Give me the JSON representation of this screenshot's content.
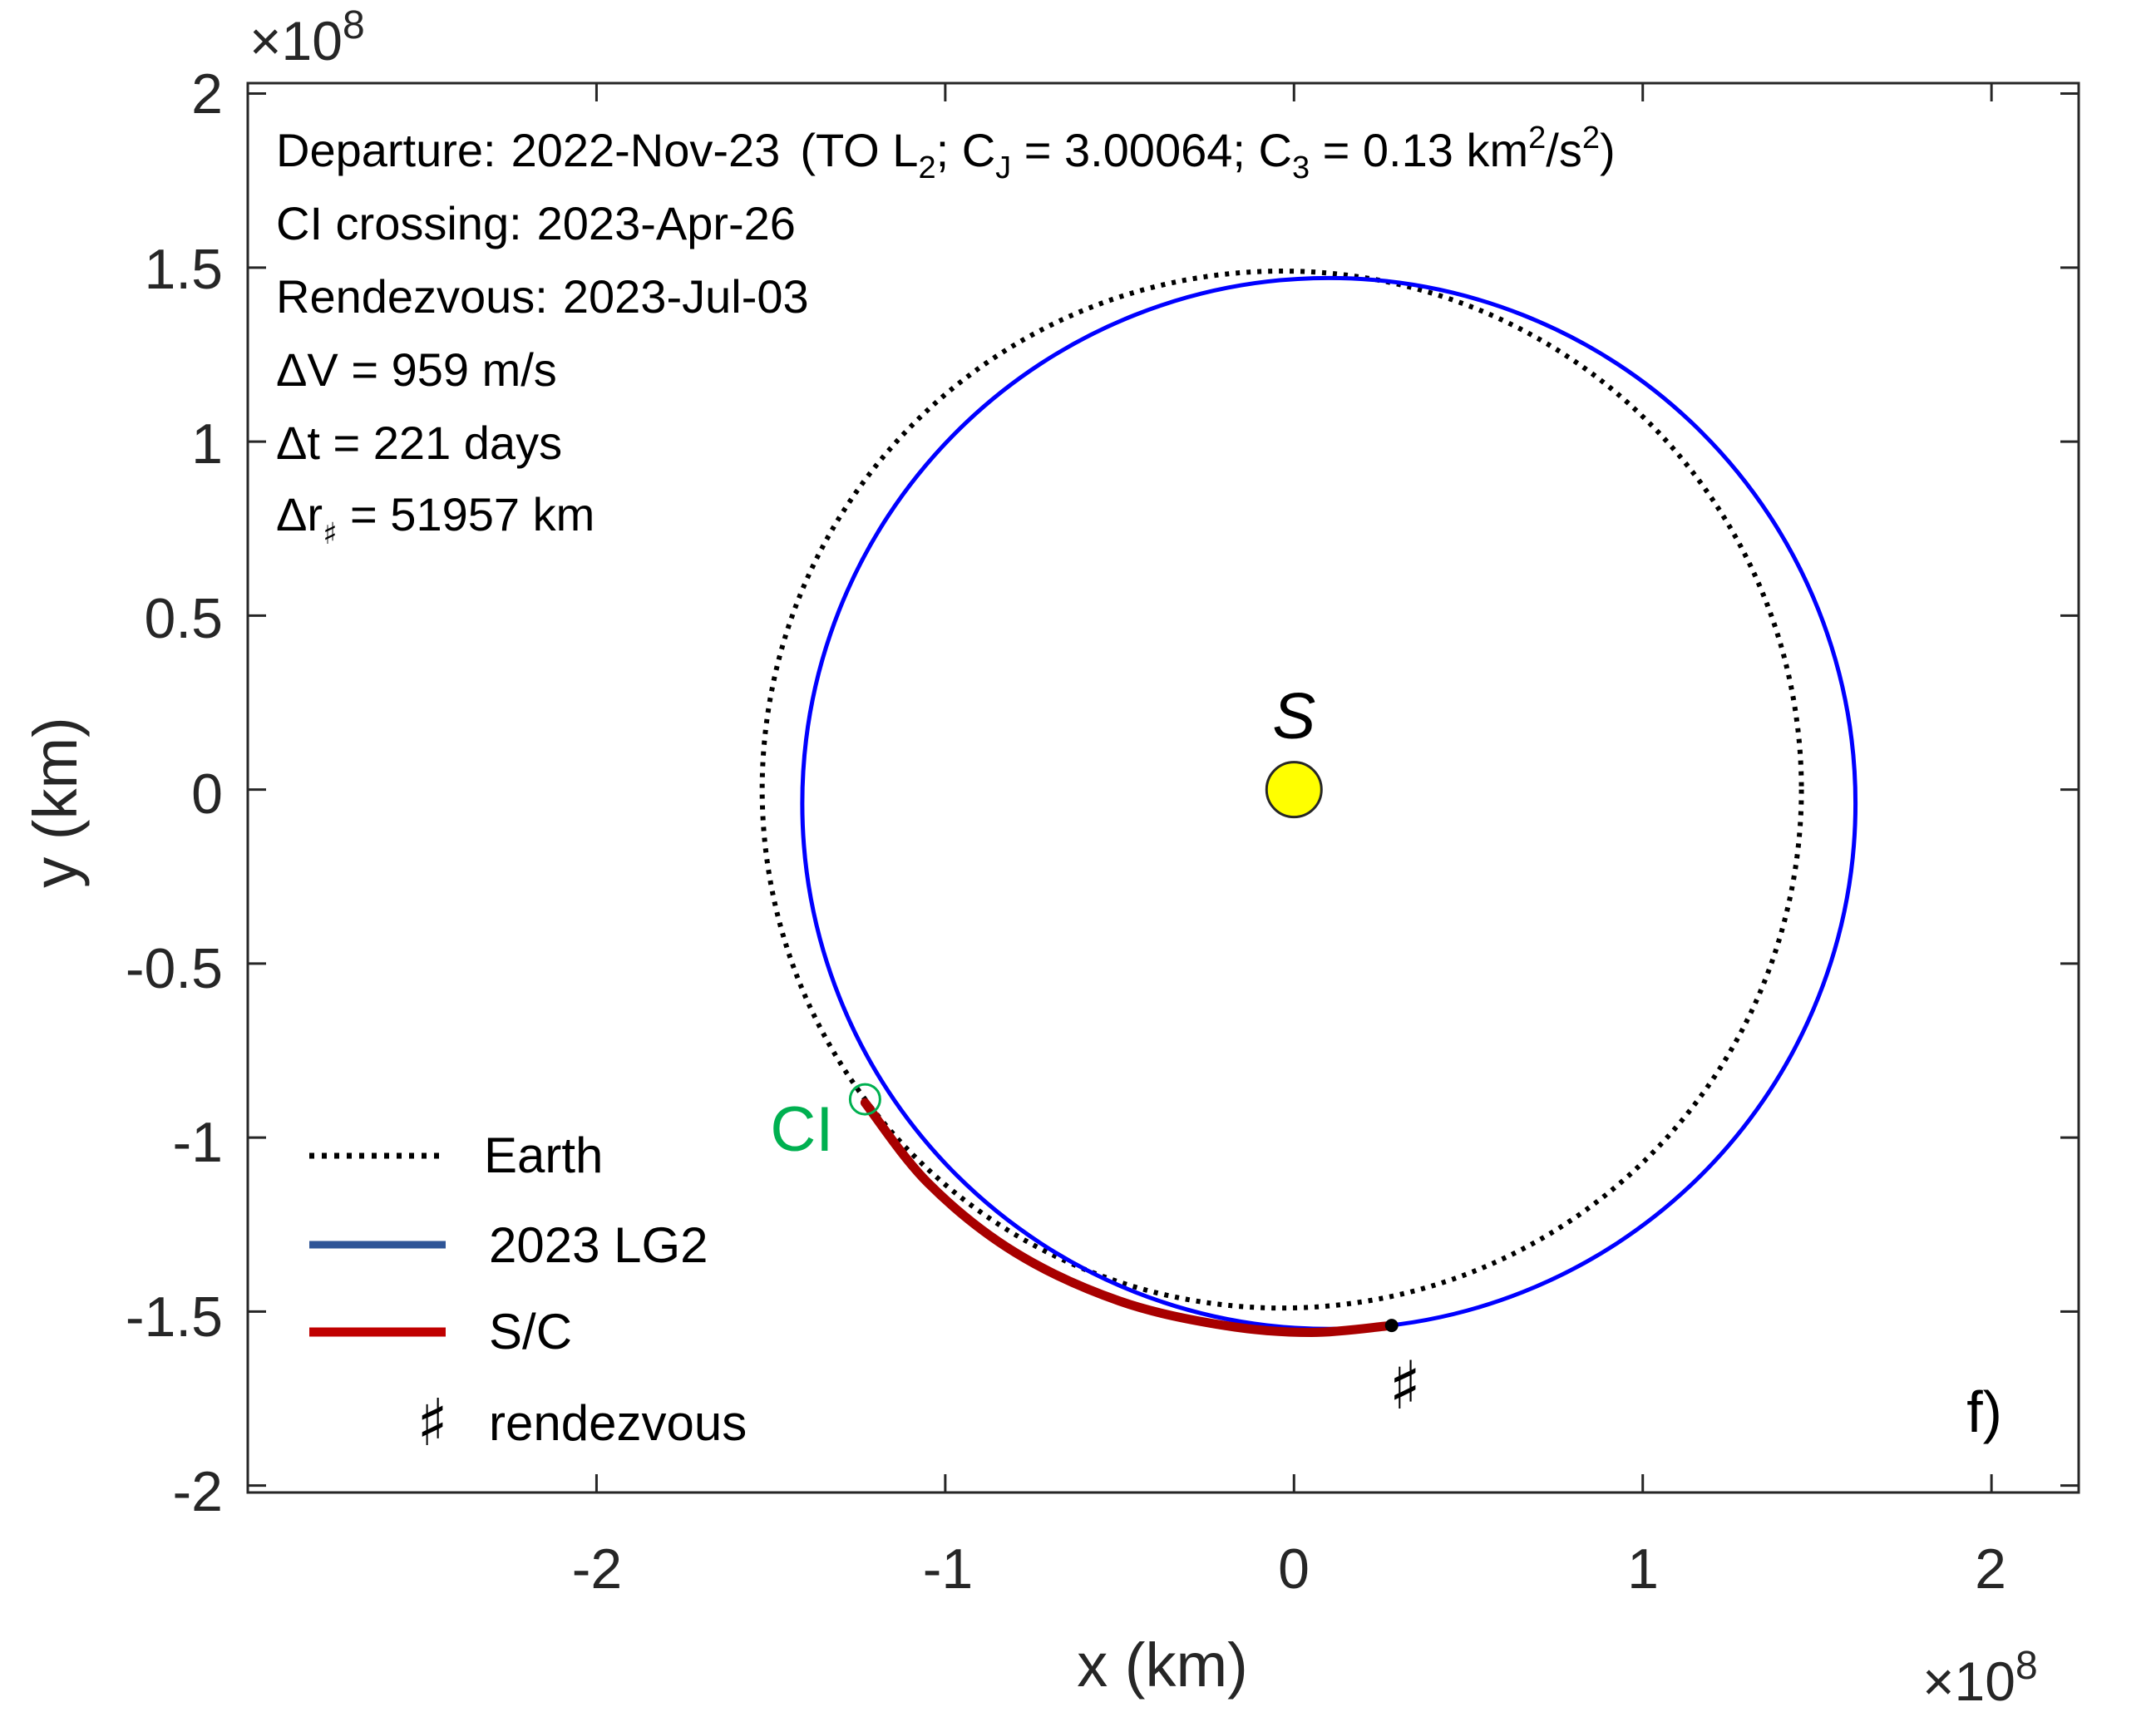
{
  "chart_data": {
    "type": "line",
    "panel_label": "f)",
    "xlabel": "x (km)",
    "ylabel": "y (km)",
    "x_multiplier": "×10",
    "x_multiplier_exp": "8",
    "y_multiplier": "×10",
    "y_multiplier_exp": "8",
    "xlim": [
      -3.0,
      2.25
    ],
    "ylim": [
      -2.02,
      2.03
    ],
    "xticks": [
      -2,
      -1,
      0,
      1,
      2
    ],
    "xtick_labels": [
      "-2",
      "-1",
      "0",
      "1",
      "2"
    ],
    "yticks": [
      -2,
      -1.5,
      -1,
      -0.5,
      0,
      0.5,
      1,
      1.5,
      2
    ],
    "ytick_labels": [
      "-2",
      "-1.5",
      "-1",
      "-0.5",
      "0",
      "0.5",
      "1",
      "1.5",
      "2"
    ],
    "annotations": {
      "departure": {
        "label": "Departure:",
        "date": "2022-Nov-23",
        "open": "(TO L",
        "l_sub": "2",
        "cj_pre": "; C",
        "cj_sub": "J",
        "cj_val": " = 3.00064; C",
        "c3_sub": "3",
        "c3_val": " =  0.13 km",
        "sq1": "2",
        "slash_s": "/s",
        "sq2": "2",
        "close": ")"
      },
      "ci_crossing": {
        "label": "CI crossing:",
        "date": "2023-Apr-26"
      },
      "rendezvous": {
        "label": "Rendezvous:",
        "date": "2023-Jul-03"
      },
      "delta_v": "ΔV =  959 m/s",
      "delta_t": "Δt = 221 days",
      "delta_r": {
        "prefix": "Δr",
        "sub": "♯",
        "value": " = 51957 km"
      }
    },
    "sun": {
      "label": "S",
      "x": 0,
      "y": 0,
      "color": "#ffff00"
    },
    "ci_marker": {
      "label": "CI",
      "x": -1.23,
      "y": -0.89,
      "color": "#00b050"
    },
    "rendezvous_marker": {
      "label": "♯",
      "x": 0.28,
      "y": -1.54
    },
    "series": [
      {
        "name": "Earth",
        "style": "dotted",
        "color": "#000000",
        "center": [
          -0.035,
          0
        ],
        "rx": 1.49,
        "ry": 1.49
      },
      {
        "name": "2023 LG2",
        "style": "solid",
        "color": "#0000ff",
        "center": [
          0.1,
          -0.04
        ],
        "rx": 1.51,
        "ry": 1.51
      },
      {
        "name": "S/C",
        "style": "solid-thick",
        "color": "#c00000",
        "x": [
          -1.23,
          -1.05,
          -0.8,
          -0.5,
          -0.2,
          0.05,
          0.28
        ],
        "y": [
          -0.9,
          -1.13,
          -1.33,
          -1.47,
          -1.54,
          -1.56,
          -1.54
        ]
      }
    ],
    "legend": {
      "placement": "bottom-left",
      "items": [
        {
          "label": "Earth",
          "style": "dotted",
          "color": "#000000"
        },
        {
          "label": "2023 LG2",
          "style": "solid",
          "color": "#2f5597"
        },
        {
          "label": "S/C",
          "style": "solid",
          "color": "#c00000"
        },
        {
          "label": "rendezvous",
          "symbol": "♯"
        }
      ]
    },
    "grid": false
  }
}
